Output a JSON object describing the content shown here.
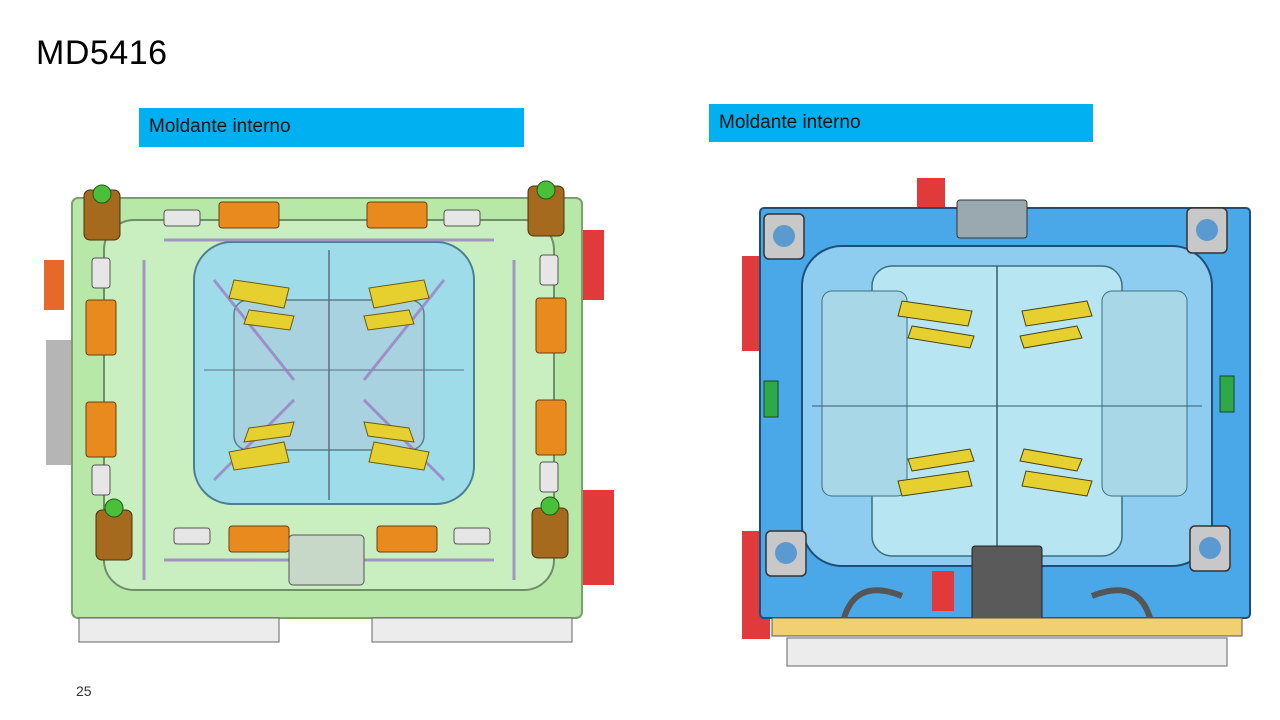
{
  "slide": {
    "title": "MD5416",
    "page_number": "25"
  },
  "panels": [
    {
      "label": "Moldante interno"
    },
    {
      "label": "Moldante interno"
    }
  ],
  "colors": {
    "label_bg": "#00b0f0",
    "mold_left_plate": "#b8e8a8",
    "mold_left_cavity": "#9fdcea",
    "mold_right_plate": "#4aa8e8",
    "mold_right_cavity": "#b7e6f2",
    "insert_orange": "#e88a1e",
    "slider_yellow": "#e6d030",
    "accent_red": "#e03a3a"
  }
}
